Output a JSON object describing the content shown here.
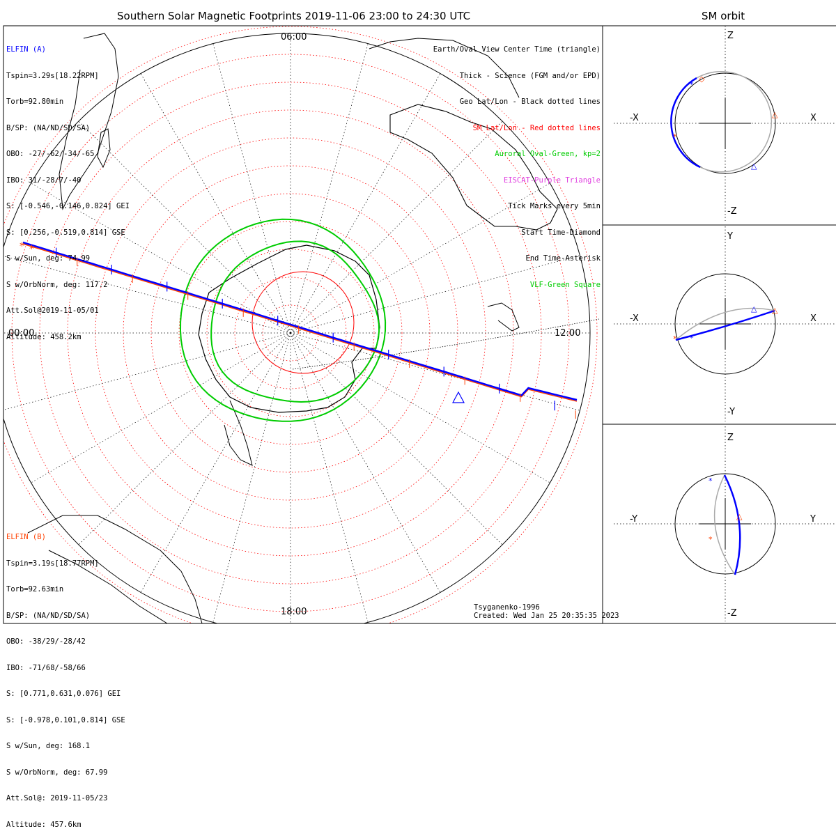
{
  "title": "Southern Solar Magnetic Footprints 2019-11-06 23:00 to 24:30 UTC",
  "right_title": "SM orbit",
  "time_labels": {
    "top": "06:00",
    "left": "00:00",
    "right": "12:00",
    "bottom": "18:00"
  },
  "legend": [
    {
      "text": "Earth/Oval View Center Time (triangle)",
      "color": "#000000"
    },
    {
      "text": "Thick - Science (FGM and/or EPD)",
      "color": "#000000"
    },
    {
      "text": "Geo Lat/Lon - Black dotted lines",
      "color": "#000000"
    },
    {
      "text": "SM Lat/Lon - Red dotted lines",
      "color": "#ff0000"
    },
    {
      "text": "Auroral Oval-Green, kp=2",
      "color": "#00cc00"
    },
    {
      "text": "EISCAT-Purple Triangle",
      "color": "#e040e0"
    },
    {
      "text": "Tick Marks every 5min",
      "color": "#000000"
    },
    {
      "text": "Start Time-Diamond",
      "color": "#000000"
    },
    {
      "text": "End Time-Asterisk",
      "color": "#000000"
    },
    {
      "text": "VLF-Green Square",
      "color": "#00cc00"
    }
  ],
  "elfin_a": {
    "name": "ELFIN (A)",
    "color": "#0000ff",
    "lines": [
      "Tspin=3.29s[18.22RPM]",
      "Torb=92.80min",
      "B/SP: (NA/ND/SD/SA)",
      "OBO: -27/-62/-34/-65",
      "IBO: 31/-28/7/-40",
      "S: [-0.546,-0.146,0.824] GEI",
      "S: [0.256,-0.519,0.814] GSE",
      "S w/Sun, deg: 74.99",
      "S w/OrbNorm, deg: 117.2",
      "Att.Sol@2019-11-05/01",
      "Altitude: 458.2km"
    ]
  },
  "elfin_b": {
    "name": "ELFIN (B)",
    "color": "#ff4000",
    "lines": [
      "Tspin=3.19s[18.77RPM]",
      "Torb=92.63min",
      "B/SP: (NA/ND/SD/SA)",
      "OBO: -38/29/-28/42",
      "IBO: -71/68/-58/66",
      "S: [0.771,0.631,0.076] GEI",
      "S: [-0.978,0.101,0.814] GSE",
      "S w/Sun, deg: 168.1",
      "S w/OrbNorm, deg: 67.99",
      "Att.Sol@: 2019-11-05/23",
      "Altitude: 457.6km"
    ]
  },
  "footer": {
    "model": "Tsyganenko-1996",
    "created": "Created: Wed Jan 25 20:35:35 2023"
  },
  "panels": [
    {
      "top": "Z",
      "bottom": "-Z",
      "left": "-X",
      "right": "X"
    },
    {
      "top": "Y",
      "bottom": "-Y",
      "left": "-X",
      "right": "X"
    },
    {
      "top": "Z",
      "bottom": "-Z",
      "left": "-Y",
      "right": "Y"
    }
  ],
  "colors": {
    "elfin_a": "#0000ff",
    "elfin_b": "#ff4000",
    "geo_grid": "#000000",
    "sm_grid": "#ff0000",
    "auroral_oval": "#00cc00",
    "eiscat": "#e040e0",
    "orbit_gray": "#aaaaaa"
  },
  "chart_data": {
    "type": "map",
    "projection": "polar, southern hemisphere",
    "time_range_utc": [
      "2019-11-06 23:00",
      "2019-11-06 24:30"
    ],
    "auroral_oval_kp": 2,
    "tick_interval_min": 5,
    "series": [
      {
        "name": "ELFIN (A)",
        "color": "#0000ff"
      },
      {
        "name": "ELFIN (B)",
        "color": "#ff4000"
      }
    ]
  }
}
